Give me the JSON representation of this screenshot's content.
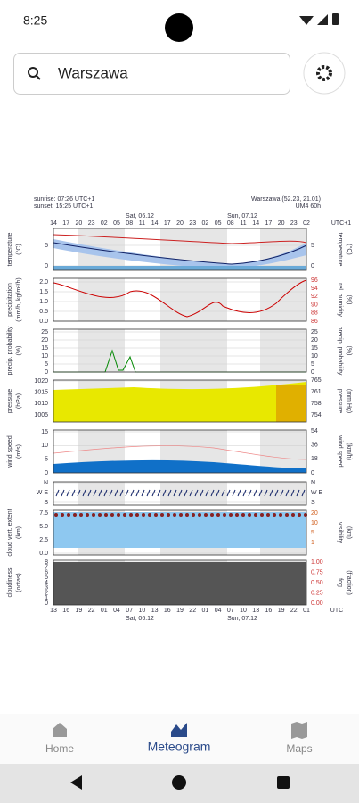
{
  "status_bar": {
    "time": "8:25"
  },
  "search": {
    "query": "Warszawa"
  },
  "meteogram": {
    "sunrise": "sunrise: 07:26 UTC+1",
    "sunset": "sunset: 15:25 UTC+1",
    "location": "Warszawa (52.23, 21.01)",
    "model": "UM4 60h",
    "top_hours": [
      "14",
      "17",
      "20",
      "23",
      "02",
      "05",
      "08",
      "11",
      "14",
      "17",
      "20",
      "23",
      "02",
      "05",
      "08",
      "11",
      "14",
      "17",
      "20",
      "23",
      "02"
    ],
    "top_zone": "UTC+1",
    "top_days": [
      "Sat, 06.12",
      "Sun, 07.12"
    ],
    "bottom_hours": [
      "13",
      "16",
      "19",
      "22",
      "01",
      "04",
      "07",
      "10",
      "13",
      "16",
      "19",
      "22",
      "01",
      "04",
      "07",
      "10",
      "13",
      "16",
      "19",
      "22",
      "01"
    ],
    "bottom_zone": "UTC",
    "bottom_days": [
      "Sat, 06.12",
      "Sun, 07.12"
    ],
    "panels": [
      {
        "left_label": "temperature",
        "left_unit": "(°C)",
        "left_ticks": [
          "5",
          "0"
        ],
        "right_label": "temperature",
        "right_unit": "(°C)",
        "right_ticks": [
          "5",
          "0"
        ]
      },
      {
        "left_label": "precipitation",
        "left_unit": "(mm/h, kg/m²/h)",
        "left_ticks": [
          "2.0",
          "1.5",
          "1.0",
          "0.5",
          "0.0"
        ],
        "right_label": "rel. humidity",
        "right_unit": "(%)",
        "right_ticks": [
          "96",
          "94",
          "92",
          "90",
          "88",
          "86"
        ]
      },
      {
        "left_label": "precip. probability",
        "left_unit": "(%)",
        "left_ticks": [
          "25",
          "20",
          "15",
          "10",
          "5",
          "0"
        ],
        "right_label": "precip. probability",
        "right_unit": "(%)",
        "right_ticks": [
          "25",
          "20",
          "15",
          "10",
          "5",
          "0"
        ]
      },
      {
        "left_label": "pressure",
        "left_unit": "(hPa)",
        "left_ticks": [
          "1020",
          "1015",
          "1010",
          "1005"
        ],
        "right_label": "pressure",
        "right_unit": "(mm Hg)",
        "right_ticks": [
          "765",
          "761",
          "758",
          "754"
        ]
      },
      {
        "left_label": "wind speed",
        "left_unit": "(m/s)",
        "left_ticks": [
          "15",
          "10",
          "5",
          "0"
        ],
        "right_label": "wind speed",
        "right_unit": "(km/h)",
        "right_ticks": [
          "54",
          "36",
          "18",
          "0"
        ]
      },
      {
        "left_label": "",
        "left_unit": "",
        "left_ticks": [
          "N",
          "W E",
          "S"
        ],
        "right_label": "",
        "right_unit": "",
        "right_ticks": [
          "N",
          "W E",
          "S"
        ]
      },
      {
        "left_label": "cloud vert. extent",
        "left_unit": "(km)",
        "left_ticks": [
          "7.5",
          "5.0",
          "2.5",
          "0.0"
        ],
        "right_label": "visibility",
        "right_unit": "(km)",
        "right_ticks": [
          "20",
          "10",
          "5",
          "1"
        ]
      },
      {
        "left_label": "cloudiness",
        "left_unit": "(octas)",
        "left_ticks": [
          "8",
          "7",
          "6",
          "5",
          "4",
          "3",
          "2",
          "1",
          "0"
        ],
        "right_label": "fog",
        "right_unit": "(fraction)",
        "right_ticks": [
          "1.00",
          "0.75",
          "0.50",
          "0.25",
          "0.00"
        ]
      }
    ]
  },
  "nav": {
    "items": [
      "Home",
      "Meteogram",
      "Maps"
    ]
  }
}
